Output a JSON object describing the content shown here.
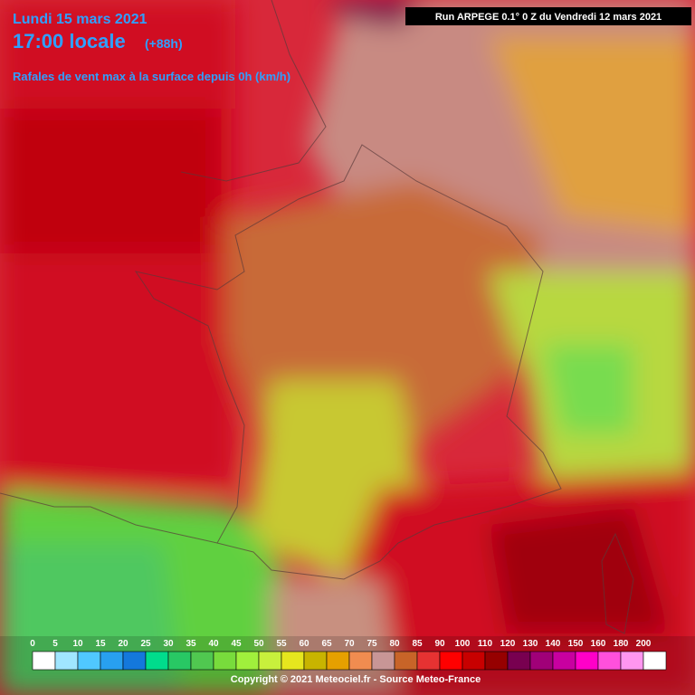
{
  "header": {
    "date": "Lundi 15 mars 2021",
    "time": "17:00 locale",
    "lead": "(+88h)",
    "subtitle": "Rafales de vent max à la surface depuis 0h (km/h)",
    "run": "Run ARPEGE 0.1° 0 Z du Vendredi 12 mars 2021"
  },
  "legend": {
    "stops": [
      {
        "value": 0,
        "color": "#ffffff"
      },
      {
        "value": 5,
        "color": "#a0e6ff"
      },
      {
        "value": 10,
        "color": "#50c8ff"
      },
      {
        "value": 15,
        "color": "#28a0f0"
      },
      {
        "value": 20,
        "color": "#1478dc"
      },
      {
        "value": 25,
        "color": "#00dc8c"
      },
      {
        "value": 30,
        "color": "#28c864"
      },
      {
        "value": 35,
        "color": "#50c850"
      },
      {
        "value": 40,
        "color": "#78dc3c"
      },
      {
        "value": 45,
        "color": "#a0f03c"
      },
      {
        "value": 50,
        "color": "#c8f03c"
      },
      {
        "value": 55,
        "color": "#e6e61e"
      },
      {
        "value": 60,
        "color": "#c8b400"
      },
      {
        "value": 65,
        "color": "#e6a000"
      },
      {
        "value": 70,
        "color": "#f08c50"
      },
      {
        "value": 75,
        "color": "#c89696"
      },
      {
        "value": 80,
        "color": "#c86428"
      },
      {
        "value": 85,
        "color": "#e63232"
      },
      {
        "value": 90,
        "color": "#ff0000"
      },
      {
        "value": 100,
        "color": "#c80000"
      },
      {
        "value": 110,
        "color": "#960000"
      },
      {
        "value": 120,
        "color": "#780050"
      },
      {
        "value": 130,
        "color": "#a00078"
      },
      {
        "value": 140,
        "color": "#c800a0"
      },
      {
        "value": 150,
        "color": "#ff00c8"
      },
      {
        "value": 160,
        "color": "#ff50dc"
      },
      {
        "value": 180,
        "color": "#ff96f0"
      },
      {
        "value": 200,
        "color": "#ffffff"
      }
    ]
  },
  "footer": {
    "copyright": "Copyright © 2021 Meteociel.fr - Source Meteo-France"
  }
}
